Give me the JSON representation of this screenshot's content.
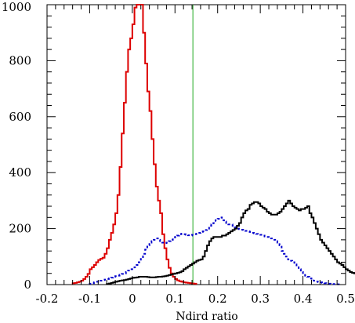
{
  "chart_data": {
    "type": "histogram",
    "title": "",
    "xlabel": "Ndird ratio",
    "ylabel": "",
    "xlim": [
      -0.2,
      0.5
    ],
    "ylim": [
      0,
      1000
    ],
    "x_ticks": [
      "-0.2",
      "-0.1",
      "0",
      "0.1",
      "0.2",
      "0.3",
      "0.4",
      "0.5"
    ],
    "y_ticks": [
      "0",
      "200",
      "400",
      "600",
      "800",
      "1000"
    ],
    "bin_width": 0.005,
    "grid": false,
    "legend": "none",
    "cut_line": {
      "x": 0.142,
      "color": "#22aa22"
    },
    "series": [
      {
        "color": "#dd0000",
        "style": "solid",
        "bin_start": -0.14,
        "values": [
          5,
          6,
          8,
          10,
          14,
          20,
          28,
          38,
          55,
          62,
          70,
          80,
          88,
          92,
          96,
          110,
          130,
          160,
          185,
          215,
          255,
          320,
          420,
          540,
          650,
          760,
          840,
          880,
          930,
          990,
          1000,
          1010,
          1000,
          900,
          790,
          690,
          620,
          520,
          430,
          350,
          300,
          255,
          180,
          130,
          90,
          60,
          40,
          28,
          20,
          15,
          12,
          10,
          8,
          7,
          6,
          5,
          4,
          3
        ]
      },
      {
        "color": "#0000cc",
        "style": "dotted",
        "bin_start": -0.1,
        "values": [
          3,
          5,
          8,
          10,
          12,
          14,
          16,
          18,
          20,
          22,
          25,
          28,
          30,
          32,
          35,
          38,
          40,
          45,
          50,
          55,
          58,
          62,
          70,
          80,
          95,
          110,
          125,
          140,
          150,
          155,
          160,
          165,
          160,
          155,
          150,
          148,
          150,
          155,
          160,
          165,
          170,
          175,
          180,
          182,
          180,
          178,
          176,
          175,
          178,
          180,
          182,
          185,
          188,
          190,
          195,
          200,
          210,
          215,
          220,
          230,
          235,
          240,
          230,
          225,
          220,
          215,
          215,
          210,
          205,
          200,
          198,
          196,
          195,
          192,
          190,
          188,
          185,
          183,
          181,
          180,
          178,
          175,
          172,
          170,
          168,
          165,
          160,
          155,
          150,
          140,
          120,
          110,
          100,
          90,
          85,
          80,
          72,
          62,
          55,
          45,
          38,
          32,
          28,
          22,
          18,
          14,
          11,
          9,
          8,
          6,
          5,
          4,
          3,
          2,
          2,
          2,
          1,
          1
        ]
      },
      {
        "color": "#000000",
        "style": "solid",
        "bin_start": -0.06,
        "values": [
          2,
          4,
          6,
          8,
          10,
          12,
          14,
          15,
          16,
          18,
          20,
          22,
          24,
          25,
          26,
          28,
          28,
          28,
          28,
          27,
          26,
          26,
          26,
          27,
          28,
          28,
          29,
          30,
          32,
          34,
          36,
          38,
          40,
          42,
          44,
          48,
          55,
          60,
          65,
          70,
          75,
          80,
          85,
          88,
          90,
          100,
          120,
          140,
          155,
          165,
          170,
          170,
          170,
          170,
          175,
          175,
          180,
          185,
          190,
          195,
          200,
          210,
          220,
          240,
          255,
          265,
          270,
          285,
          290,
          295,
          295,
          290,
          280,
          275,
          270,
          260,
          255,
          250,
          250,
          250,
          255,
          260,
          270,
          280,
          290,
          300,
          290,
          280,
          275,
          270,
          265,
          270,
          270,
          275,
          280,
          255,
          240,
          220,
          200,
          180,
          160,
          150,
          140,
          130,
          120,
          110,
          100,
          90,
          80,
          75,
          70,
          62,
          55,
          50,
          45,
          42,
          40,
          35,
          30,
          25,
          22,
          18,
          14,
          10,
          8,
          6,
          4,
          3,
          2,
          2,
          1
        ]
      }
    ]
  }
}
